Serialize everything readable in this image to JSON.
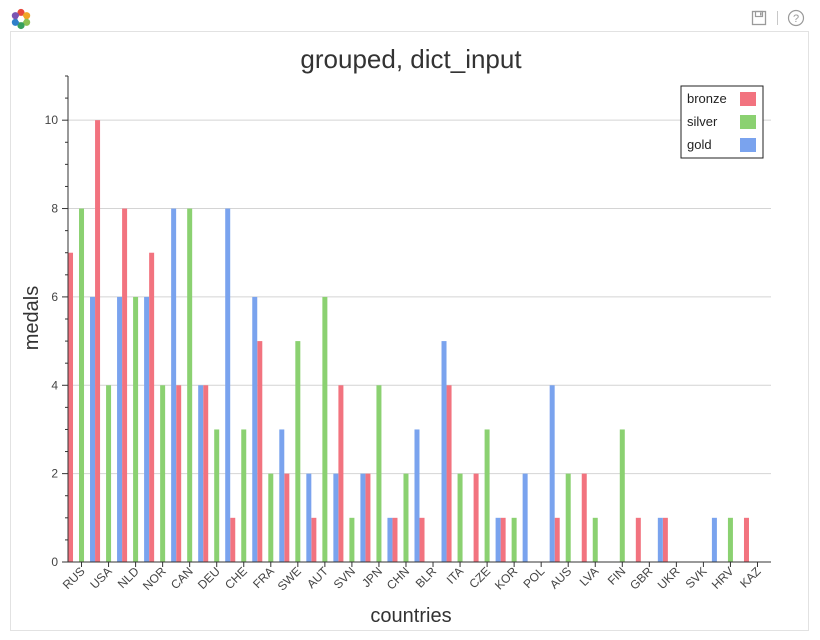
{
  "toolbar": {
    "logo_icon": "bokeh-logo-icon",
    "save_icon": "save-icon",
    "help_icon": "help-icon",
    "help_glyph": "?"
  },
  "colors": {
    "bronze": "#f2737f",
    "silver": "#8bd171",
    "gold": "#7aa3ee",
    "grid": "#d4d4d4",
    "axis": "#333333"
  },
  "chart_data": {
    "type": "bar",
    "title": "grouped, dict_input",
    "xlabel": "countries",
    "ylabel": "medals",
    "ylim": [
      0,
      11
    ],
    "yticks": [
      0,
      2,
      4,
      6,
      8,
      10
    ],
    "grid": "horizontal",
    "legend_position": "top-right",
    "categories": [
      "RUS",
      "USA",
      "NLD",
      "NOR",
      "CAN",
      "DEU",
      "CHE",
      "FRA",
      "SWE",
      "AUT",
      "SVN",
      "JPN",
      "CHN",
      "BLR",
      "ITA",
      "CZE",
      "KOR",
      "POL",
      "AUS",
      "LVA",
      "FIN",
      "GBR",
      "UKR",
      "SVK",
      "HRV",
      "KAZ"
    ],
    "series": [
      {
        "name": "bronze",
        "values": [
          7,
          10,
          8,
          7,
          4,
          4,
          1,
          5,
          2,
          1,
          4,
          2,
          1,
          1,
          4,
          2,
          1,
          0,
          1,
          2,
          0,
          1,
          1,
          0,
          0,
          1
        ]
      },
      {
        "name": "silver",
        "values": [
          8,
          4,
          6,
          4,
          8,
          3,
          3,
          2,
          5,
          6,
          1,
          4,
          2,
          0,
          2,
          3,
          1,
          0,
          2,
          1,
          3,
          0,
          0,
          0,
          1,
          0
        ]
      },
      {
        "name": "gold",
        "values": [
          6,
          6,
          6,
          8,
          4,
          8,
          6,
          3,
          2,
          2,
          2,
          1,
          3,
          5,
          0,
          1,
          2,
          4,
          0,
          0,
          0,
          1,
          0,
          1,
          0,
          0
        ]
      }
    ]
  }
}
